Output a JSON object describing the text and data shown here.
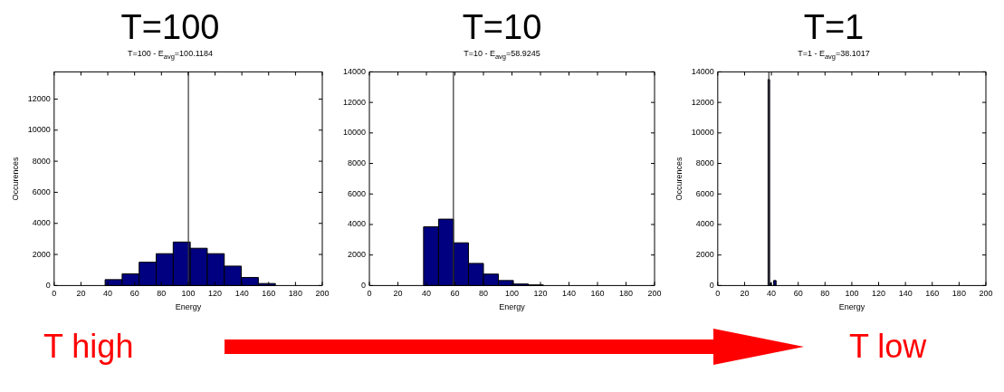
{
  "chart_data": [
    {
      "type": "histogram",
      "title": "T=100",
      "subtitle": "T=100 - E$_{avg}$=100.1184",
      "xlabel": "Energy",
      "ylabel": "Occurences",
      "bins": [
        38,
        50.7,
        63.4,
        76.1,
        88.8,
        101.5,
        114.2,
        126.9,
        139.6,
        152.3,
        165
      ],
      "values": [
        380,
        750,
        1500,
        2050,
        2800,
        2400,
        2050,
        1250,
        520,
        130
      ],
      "color": "#000080",
      "xlim": [
        0,
        200
      ],
      "xticks": [
        0,
        20,
        40,
        60,
        80,
        100,
        120,
        140,
        160,
        180,
        200
      ],
      "ylim": [
        0,
        13750
      ],
      "yticks": [
        0,
        2000,
        4000,
        6000,
        8000,
        10000,
        12000
      ],
      "ref_lines": [
        {
          "axis": "x",
          "value": 100.1184,
          "color": "#333333"
        }
      ],
      "annotations": [
        "T high"
      ]
    },
    {
      "type": "histogram",
      "title": "T=10",
      "subtitle": "T=10 - E$_{avg}$=58.9245",
      "xlabel": "Energy",
      "bins": [
        38,
        48.5,
        59,
        69.5,
        80,
        90.5,
        101,
        111.5,
        122
      ],
      "values": [
        3850,
        4350,
        2800,
        1450,
        750,
        330,
        100,
        40
      ],
      "color": "#000080",
      "xlim": [
        0,
        200
      ],
      "xticks": [
        0,
        20,
        40,
        60,
        80,
        100,
        120,
        140,
        160,
        180,
        200
      ],
      "ylim": [
        0,
        14000
      ],
      "yticks": [
        0,
        2000,
        4000,
        6000,
        8000,
        10000,
        12000,
        14000
      ],
      "ref_lines": [
        {
          "axis": "x",
          "value": 58.9245,
          "color": "#333333"
        }
      ]
    },
    {
      "type": "histogram",
      "title": "T=1",
      "subtitle": "T=1 - E$_{avg}$=38.1017",
      "xlabel": "Energy",
      "ylabel": "Occurences",
      "bins": [
        37.5,
        38.7,
        39.9,
        41.7,
        43.5
      ],
      "values": [
        13500,
        150,
        0,
        330
      ],
      "color": "#000080",
      "xlim": [
        0,
        200
      ],
      "xticks": [
        0,
        20,
        40,
        60,
        80,
        100,
        120,
        140,
        160,
        180,
        200
      ],
      "ylim": [
        0,
        14000
      ],
      "yticks": [
        0,
        2000,
        4000,
        6000,
        8000,
        10000,
        12000,
        14000
      ],
      "ref_lines": [
        {
          "axis": "x",
          "value": 38.1017,
          "color": "#333333"
        }
      ],
      "annotations": [
        "T low"
      ]
    }
  ]
}
